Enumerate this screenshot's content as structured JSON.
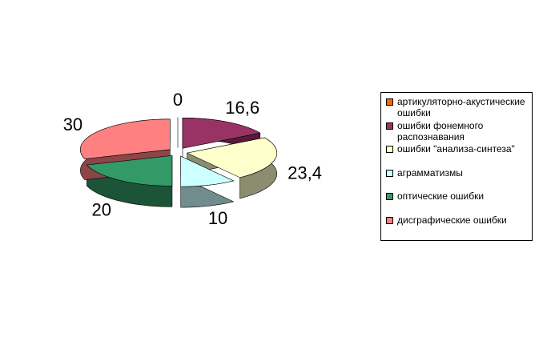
{
  "chart_data": {
    "type": "pie",
    "categories": [
      "артикуляторно-акустические ошибки",
      "ошибки фонемного распознавания",
      "ошибки \"анализа-синтеза\"",
      "аграмматизмы",
      "оптические ошибки",
      "дисграфические ошибки"
    ],
    "values": [
      0,
      16.6,
      23.4,
      10,
      20,
      30
    ],
    "value_labels": [
      "0",
      "16,6",
      "23,4",
      "10",
      "20",
      "30"
    ],
    "colors": [
      "#ff6600",
      "#993366",
      "#ffffcc",
      "#ccffff",
      "#339966",
      "#ff8080"
    ],
    "legend": "right"
  }
}
